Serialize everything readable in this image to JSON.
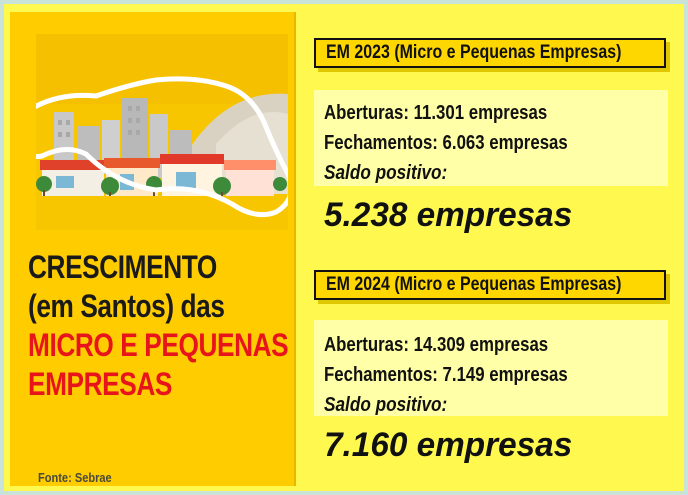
{
  "headline": {
    "line1": "CRESCIMENTO",
    "line2": "(em Santos) das",
    "line3": "MICRO E PEQUENAS",
    "line4": "EMPRESAS"
  },
  "source": "Fonte: Sebrae",
  "section_2023": {
    "title": "EM 2023 (Micro e Pequenas Empresas)",
    "openings": "Aberturas: 11.301 empresas",
    "closings": "Fechamentos: 6.063 empresas",
    "balance_label": "Saldo positivo:",
    "balance_value": "5.238 empresas"
  },
  "section_2024": {
    "title": "EM 2024 (Micro e Pequenas Empresas)",
    "openings": "Aberturas: 14.309 empresas",
    "closings": "Fechamentos: 7.149 empresas",
    "balance_label": "Saldo positivo:",
    "balance_value": "7.160 empresas"
  },
  "colors": {
    "background": "#fff94f",
    "panel": "#ffcc00",
    "header": "#ffd700",
    "stat_box": "#ffffa8",
    "accent_red": "#e8141c"
  }
}
